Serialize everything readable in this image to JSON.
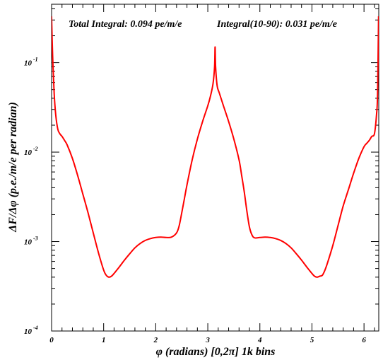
{
  "chart_data": {
    "type": "line",
    "title": "",
    "xlabel": "φ (radians) [0,2π] 1k bins",
    "ylabel": "ΔF/Δφ (p.e./m/e per radian)",
    "annotations": [
      "Total Integral: 0.094 pe/m/e",
      "Integral(10-90): 0.031 pe/m/e"
    ],
    "xlim": [
      0,
      6.2832
    ],
    "ylim": [
      0.0001,
      0.45
    ],
    "yscale": "log",
    "grid": false,
    "line_color": "#ff0000",
    "x_ticks": [
      "0",
      "1",
      "2",
      "3",
      "4",
      "5",
      "6"
    ],
    "y_ticks": [
      {
        "base": "10",
        "exp": "-4"
      },
      {
        "base": "10",
        "exp": "-3"
      },
      {
        "base": "10",
        "exp": "-2"
      },
      {
        "base": "10",
        "exp": "-1"
      }
    ],
    "series": [
      {
        "x": [
          0.0,
          0.02,
          0.05,
          0.08,
          0.12,
          0.16,
          0.2,
          0.25,
          0.3,
          0.4,
          0.5,
          0.6,
          0.7,
          0.8,
          0.9,
          1.0,
          1.05,
          1.1,
          1.15,
          1.2,
          1.3,
          1.4,
          1.5,
          1.6,
          1.7,
          1.8,
          1.9,
          2.0,
          2.1,
          2.2,
          2.3,
          2.4,
          2.45,
          2.5,
          2.55,
          2.6,
          2.7,
          2.8,
          2.9,
          3.0,
          3.05,
          3.1,
          3.13,
          3.14,
          3.15,
          3.18,
          3.22,
          3.3,
          3.4,
          3.5,
          3.6,
          3.65,
          3.7,
          3.75,
          3.8,
          3.85,
          3.9,
          4.0,
          4.1,
          4.2,
          4.3,
          4.4,
          4.5,
          4.6,
          4.7,
          4.8,
          4.9,
          5.0,
          5.05,
          5.1,
          5.15,
          5.2,
          5.25,
          5.3,
          5.4,
          5.5,
          5.6,
          5.7,
          5.8,
          5.9,
          6.0,
          6.05,
          6.1,
          6.15,
          6.2,
          6.24,
          6.26,
          6.28
        ],
        "y": [
          0.33,
          0.12,
          0.045,
          0.026,
          0.018,
          0.016,
          0.015,
          0.0135,
          0.012,
          0.0085,
          0.0055,
          0.0034,
          0.0021,
          0.00125,
          0.00075,
          0.00048,
          0.00042,
          0.0004,
          0.00041,
          0.00044,
          0.00052,
          0.00062,
          0.00073,
          0.00085,
          0.00095,
          0.00103,
          0.00108,
          0.00111,
          0.00112,
          0.00111,
          0.00112,
          0.00125,
          0.0015,
          0.0021,
          0.003,
          0.0043,
          0.0082,
          0.014,
          0.022,
          0.033,
          0.042,
          0.058,
          0.09,
          0.15,
          0.09,
          0.055,
          0.046,
          0.033,
          0.022,
          0.014,
          0.0082,
          0.0055,
          0.0036,
          0.0022,
          0.00145,
          0.00118,
          0.0011,
          0.00111,
          0.00112,
          0.00111,
          0.00108,
          0.00103,
          0.00095,
          0.00085,
          0.00073,
          0.00062,
          0.00052,
          0.00044,
          0.00041,
          0.0004,
          0.00041,
          0.00042,
          0.00048,
          0.00058,
          0.0009,
          0.0015,
          0.0025,
          0.0038,
          0.0058,
          0.0085,
          0.0115,
          0.0125,
          0.0135,
          0.015,
          0.016,
          0.026,
          0.045,
          0.33
        ]
      }
    ]
  }
}
